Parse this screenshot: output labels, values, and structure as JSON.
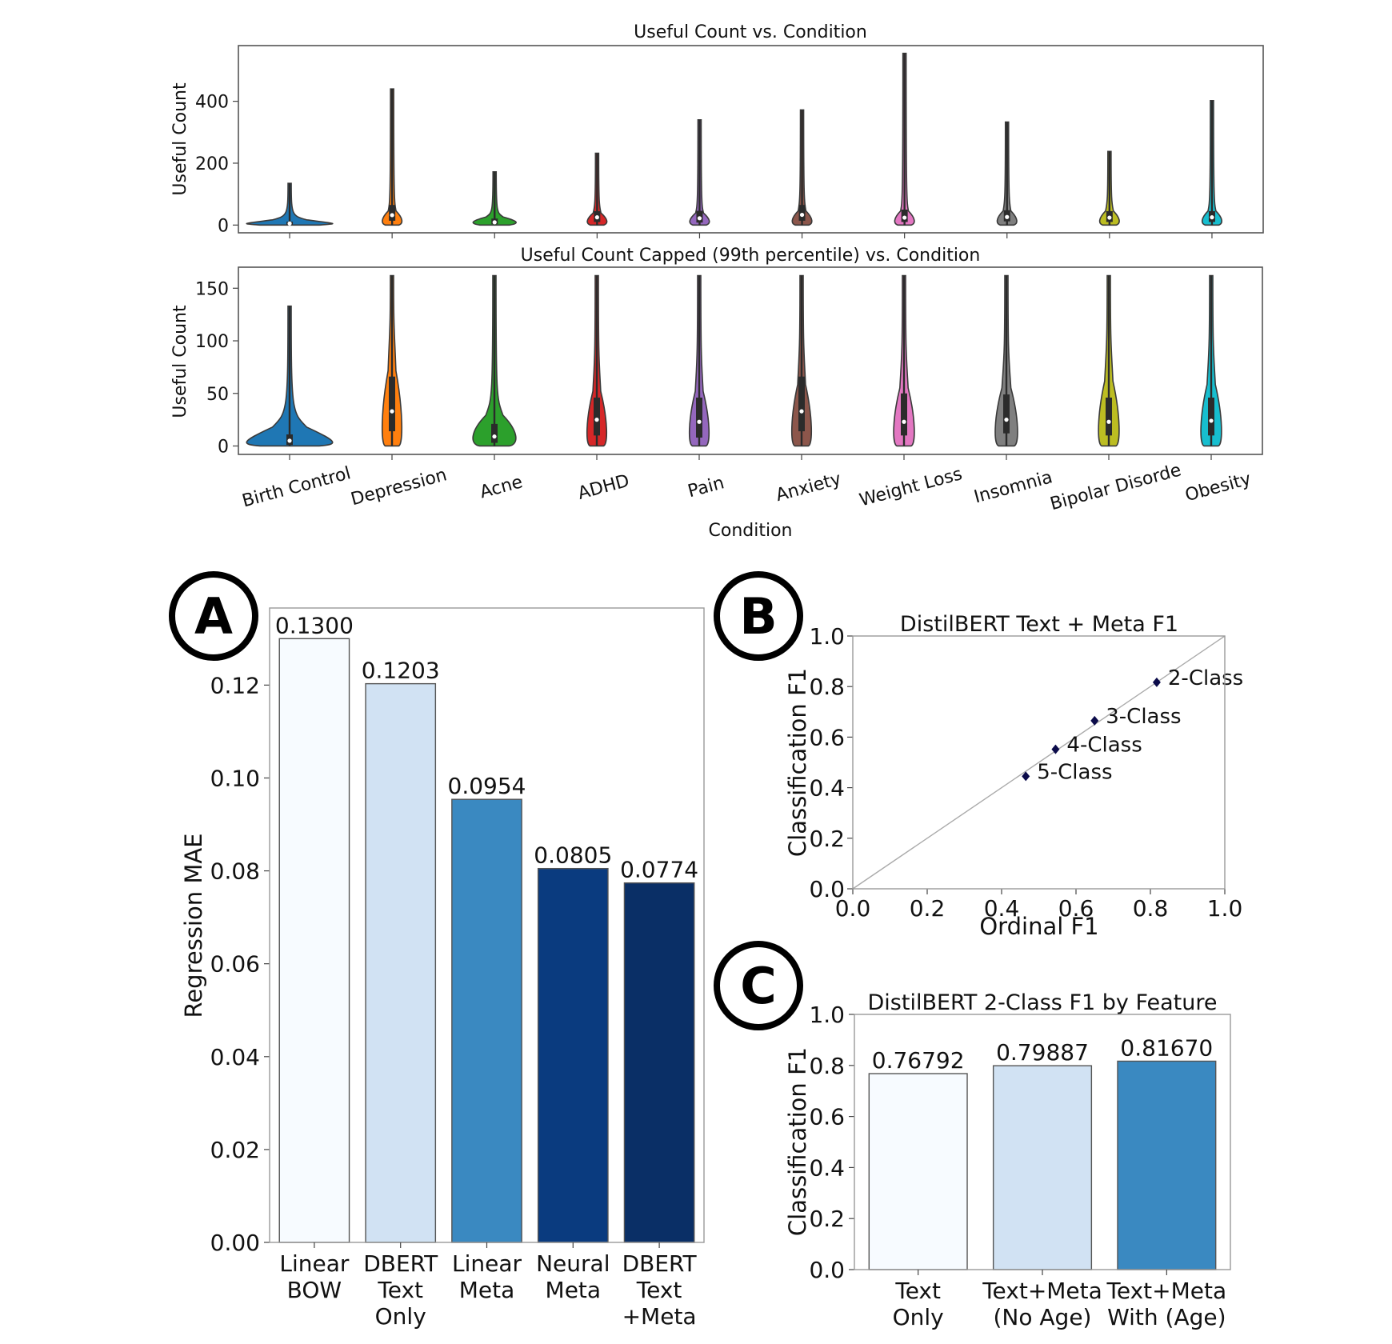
{
  "chart_data": [
    {
      "id": "violin_raw",
      "type": "violin",
      "title": "Useful Count vs. Condition",
      "xlabel": "",
      "ylabel": "Useful Count",
      "ylim": [
        -25,
        580
      ],
      "yticks": [
        0,
        200,
        400
      ],
      "categories": [
        "Birth Control",
        "Depression",
        "Acne",
        "ADHD",
        "Pain",
        "Anxiety",
        "Weight Loss",
        "Insomnia",
        "Bipolar Disorde",
        "Obesity"
      ],
      "colors": [
        "#1f77b4",
        "#ff7f0e",
        "#2ca02c",
        "#d62728",
        "#9467bd",
        "#8c564b",
        "#e377c2",
        "#7f7f7f",
        "#bcbd22",
        "#17becf"
      ],
      "series": [
        {
          "name": "Birth Control",
          "max": 135,
          "median": 5,
          "q1": 1,
          "q3": 11,
          "body_height": 30,
          "body_width": 1.0
        },
        {
          "name": "Depression",
          "max": 440,
          "median": 32,
          "q1": 14,
          "q3": 65,
          "body_height": 70,
          "body_width": 0.18
        },
        {
          "name": "Acne",
          "max": 172,
          "median": 9,
          "q1": 3,
          "q3": 21,
          "body_height": 40,
          "body_width": 0.5
        },
        {
          "name": "ADHD",
          "max": 232,
          "median": 25,
          "q1": 10,
          "q3": 45,
          "body_height": 60,
          "body_width": 0.2
        },
        {
          "name": "Pain",
          "max": 340,
          "median": 22,
          "q1": 8,
          "q3": 46,
          "body_height": 60,
          "body_width": 0.2
        },
        {
          "name": "Anxiety",
          "max": 372,
          "median": 33,
          "q1": 14,
          "q3": 65,
          "body_height": 70,
          "body_width": 0.2
        },
        {
          "name": "Weight Loss",
          "max": 555,
          "median": 24,
          "q1": 10,
          "q3": 50,
          "body_height": 70,
          "body_width": 0.2
        },
        {
          "name": "Insomnia",
          "max": 333,
          "median": 26,
          "q1": 12,
          "q3": 48,
          "body_height": 70,
          "body_width": 0.2
        },
        {
          "name": "Bipolar Disorde",
          "max": 238,
          "median": 24,
          "q1": 10,
          "q3": 45,
          "body_height": 70,
          "body_width": 0.2
        },
        {
          "name": "Obesity",
          "max": 402,
          "median": 25,
          "q1": 10,
          "q3": 45,
          "body_height": 70,
          "body_width": 0.2
        }
      ]
    },
    {
      "id": "violin_capped",
      "type": "violin",
      "title": "Useful Count Capped (99th percentile) vs. Condition",
      "xlabel": "Condition",
      "ylabel": "Useful Count",
      "ylim": [
        -8,
        170
      ],
      "yticks": [
        0,
        50,
        100,
        150
      ],
      "categories": [
        "Birth Control",
        "Depression",
        "Acne",
        "ADHD",
        "Pain",
        "Anxiety",
        "Weight Loss",
        "Insomnia",
        "Bipolar Disorde",
        "Obesity"
      ],
      "series": [
        {
          "name": "Birth Control",
          "max": 133,
          "median": 5,
          "q1": 1,
          "q3": 11,
          "body_height": 32,
          "body_width": 1.0
        },
        {
          "name": "Depression",
          "max": 162,
          "median": 33,
          "q1": 14,
          "q3": 66,
          "body_height": 110,
          "body_width": 0.17
        },
        {
          "name": "Acne",
          "max": 162,
          "median": 9,
          "q1": 3,
          "q3": 21,
          "body_height": 45,
          "body_width": 0.5
        },
        {
          "name": "ADHD",
          "max": 162,
          "median": 25,
          "q1": 10,
          "q3": 46,
          "body_height": 80,
          "body_width": 0.2
        },
        {
          "name": "Pain",
          "max": 162,
          "median": 23,
          "q1": 8,
          "q3": 46,
          "body_height": 80,
          "body_width": 0.2
        },
        {
          "name": "Anxiety",
          "max": 162,
          "median": 33,
          "q1": 14,
          "q3": 66,
          "body_height": 90,
          "body_width": 0.2
        },
        {
          "name": "Weight Loss",
          "max": 162,
          "median": 23,
          "q1": 10,
          "q3": 50,
          "body_height": 85,
          "body_width": 0.24
        },
        {
          "name": "Insomnia",
          "max": 162,
          "median": 25,
          "q1": 12,
          "q3": 49,
          "body_height": 85,
          "body_width": 0.26
        },
        {
          "name": "Bipolar Disorde",
          "max": 162,
          "median": 23,
          "q1": 10,
          "q3": 46,
          "body_height": 95,
          "body_width": 0.24
        },
        {
          "name": "Obesity",
          "max": 162,
          "median": 24,
          "q1": 10,
          "q3": 46,
          "body_height": 90,
          "body_width": 0.24
        }
      ]
    },
    {
      "id": "panel_a",
      "type": "bar",
      "badge": "A",
      "title": "",
      "xlabel": "",
      "ylabel": "Regression MAE",
      "ylim": [
        0,
        0.1366
      ],
      "yticks": [
        "0.00",
        "0.02",
        "0.04",
        "0.06",
        "0.08",
        "0.10",
        "0.12"
      ],
      "categories": [
        [
          "Linear",
          "BOW"
        ],
        [
          "DBERT",
          "Text",
          "Only"
        ],
        [
          "Linear",
          "Meta"
        ],
        [
          "Neural",
          "Meta"
        ],
        [
          "DBERT",
          "Text",
          "+Meta"
        ]
      ],
      "values": [
        0.13,
        0.1203,
        0.0954,
        0.0805,
        0.0774
      ],
      "value_labels": [
        "0.1300",
        "0.1203",
        "0.0954",
        "0.0805",
        "0.0774"
      ],
      "colors": [
        "#f7fbff",
        "#d1e2f3",
        "#3a89c1",
        "#0a3b7f",
        "#0a2f66"
      ]
    },
    {
      "id": "panel_b",
      "type": "scatter",
      "badge": "B",
      "title": "DistilBERT Text + Meta F1",
      "xlabel": "Ordinal F1",
      "ylabel": "Classification F1",
      "xlim": [
        0,
        1
      ],
      "ylim": [
        0,
        1
      ],
      "xticks": [
        "0.0",
        "0.2",
        "0.4",
        "0.6",
        "0.8",
        "1.0"
      ],
      "yticks": [
        "0.0",
        "0.2",
        "0.4",
        "0.6",
        "0.8",
        "1.0"
      ],
      "reference_line": "y = x",
      "points": [
        {
          "label": "2-Class",
          "x": 0.817,
          "y": 0.817
        },
        {
          "label": "3-Class",
          "x": 0.65,
          "y": 0.665
        },
        {
          "label": "4-Class",
          "x": 0.545,
          "y": 0.552
        },
        {
          "label": "5-Class",
          "x": 0.465,
          "y": 0.445
        }
      ],
      "marker_color": "#0b0b4a"
    },
    {
      "id": "panel_c",
      "type": "bar",
      "badge": "C",
      "title": "DistilBERT 2-Class F1 by Feature",
      "xlabel": "",
      "ylabel": "Classification F1",
      "ylim": [
        0,
        1
      ],
      "yticks": [
        "0.0",
        "0.2",
        "0.4",
        "0.6",
        "0.8",
        "1.0"
      ],
      "categories": [
        [
          "Text",
          "Only"
        ],
        [
          "Text+Meta",
          "(No Age)"
        ],
        [
          "Text+Meta",
          "With (Age)"
        ]
      ],
      "values": [
        0.76792,
        0.79887,
        0.8167
      ],
      "value_labels": [
        "0.76792",
        "0.79887",
        "0.81670"
      ],
      "colors": [
        "#f7fbff",
        "#d1e2f3",
        "#3a89c1"
      ]
    }
  ]
}
